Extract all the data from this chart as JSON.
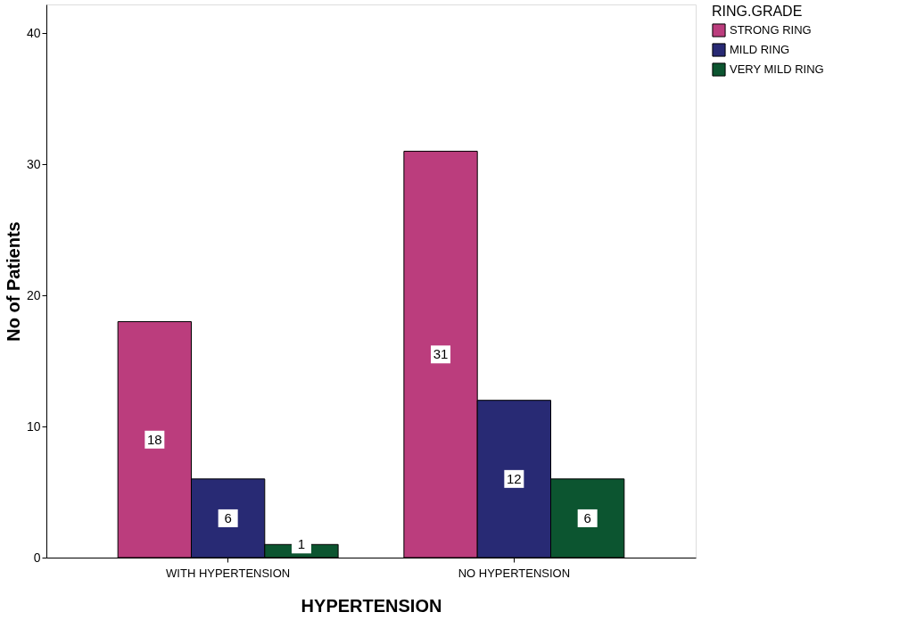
{
  "chart_data": {
    "type": "bar",
    "xlabel": "HYPERTENSION",
    "ylabel": "No of Patients",
    "legend_title": "RING.GRADE",
    "categories": [
      "WITH HYPERTENSION",
      "NO HYPERTENSION"
    ],
    "series": [
      {
        "name": "STRONG RING",
        "color": "#bb3d7d",
        "values": [
          18,
          31
        ]
      },
      {
        "name": "MILD RING",
        "color": "#282a74",
        "values": [
          6,
          12
        ]
      },
      {
        "name": "VERY MILD RING",
        "color": "#0c5530",
        "values": [
          1,
          6
        ]
      }
    ],
    "ylim": [
      0,
      42.2
    ],
    "yticks": [
      0,
      10,
      20,
      30,
      40
    ],
    "grid": false,
    "legend": "top right",
    "data_labels": true
  }
}
